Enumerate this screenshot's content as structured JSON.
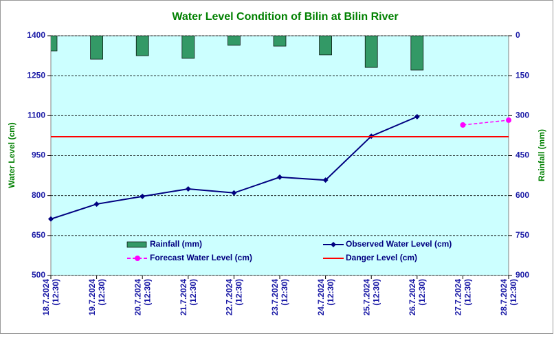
{
  "chart_data": {
    "type": "line",
    "title": "Water Level Condition of Bilin at Bilin River",
    "ylabel": "Water Level (cm)",
    "y2label": "Rainfall (mm)",
    "categories": [
      [
        "18.7.2024",
        "(12:30)"
      ],
      [
        "19.7.2024",
        "(12:30)"
      ],
      [
        "20.7.2024",
        "(12:30)"
      ],
      [
        "21.7.2024",
        "(12:30)"
      ],
      [
        "22.7.2024",
        "(12:30)"
      ],
      [
        "23.7.2024",
        "(12:30)"
      ],
      [
        "24.7.2024",
        "(12:30)"
      ],
      [
        "25.7.2024",
        "(12:30)"
      ],
      [
        "26.7.2024",
        "(12:30)"
      ],
      [
        "27.7.2024",
        "(12:30)"
      ],
      [
        "28.7.2024",
        "(12:30)"
      ]
    ],
    "ylim": [
      500,
      1400
    ],
    "yticks": [
      500,
      650,
      800,
      950,
      1100,
      1250,
      1400
    ],
    "y2lim": [
      900,
      0
    ],
    "y2ticks": [
      0,
      150,
      300,
      450,
      600,
      750,
      900
    ],
    "grid": true,
    "series": [
      {
        "name": "Rainfall (mm)",
        "kind": "bar",
        "axis": "y2",
        "color": "#339966",
        "values": [
          57,
          88,
          75,
          85,
          36,
          39,
          72,
          119,
          129,
          null,
          null
        ]
      },
      {
        "name": "Observed Water Level (cm)",
        "kind": "line",
        "color": "#000080",
        "values": [
          712,
          768,
          797,
          825,
          810,
          869,
          858,
          1023,
          1096,
          null,
          null
        ]
      },
      {
        "name": "Forecast Water Level (cm)",
        "kind": "dashed",
        "color": "#ff00ff",
        "values": [
          null,
          null,
          null,
          null,
          null,
          null,
          null,
          null,
          null,
          1065,
          1083
        ]
      },
      {
        "name": "Danger Level (cm)",
        "kind": "level",
        "color": "#ff0000",
        "value": 1021
      }
    ]
  }
}
